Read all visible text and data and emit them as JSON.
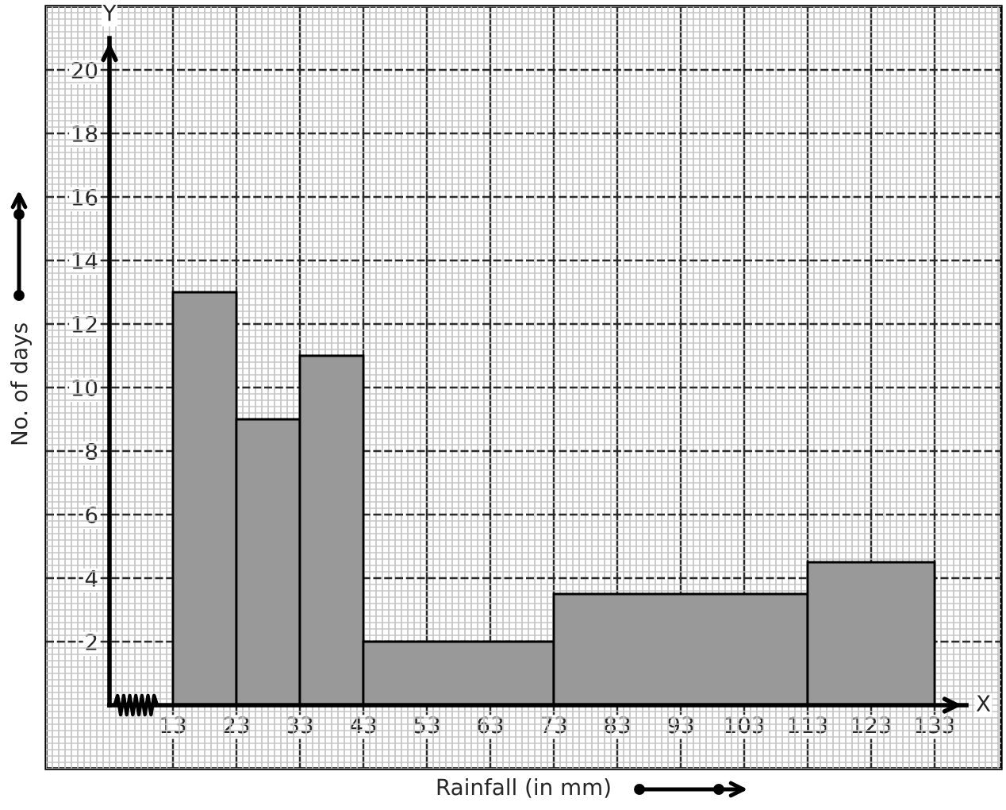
{
  "chart_data": {
    "type": "histogram",
    "xlabel": "Rainfall (in mm)",
    "ylabel": "No. of days",
    "bins": [
      13,
      23,
      33,
      43,
      73,
      113,
      133
    ],
    "values": [
      13,
      9,
      11,
      2,
      3.5,
      4.5
    ],
    "color": "#999999",
    "xlim": [
      -7,
      143.5
    ],
    "ylim": [
      -2,
      22
    ],
    "xticks": [
      13,
      23,
      33,
      43,
      53,
      63,
      73,
      83,
      93,
      103,
      113,
      123,
      133
    ],
    "yticks": [
      2,
      4,
      6,
      8,
      10,
      12,
      14,
      16,
      18,
      20
    ],
    "grid": true,
    "annotations": [
      "X",
      "Y"
    ]
  }
}
